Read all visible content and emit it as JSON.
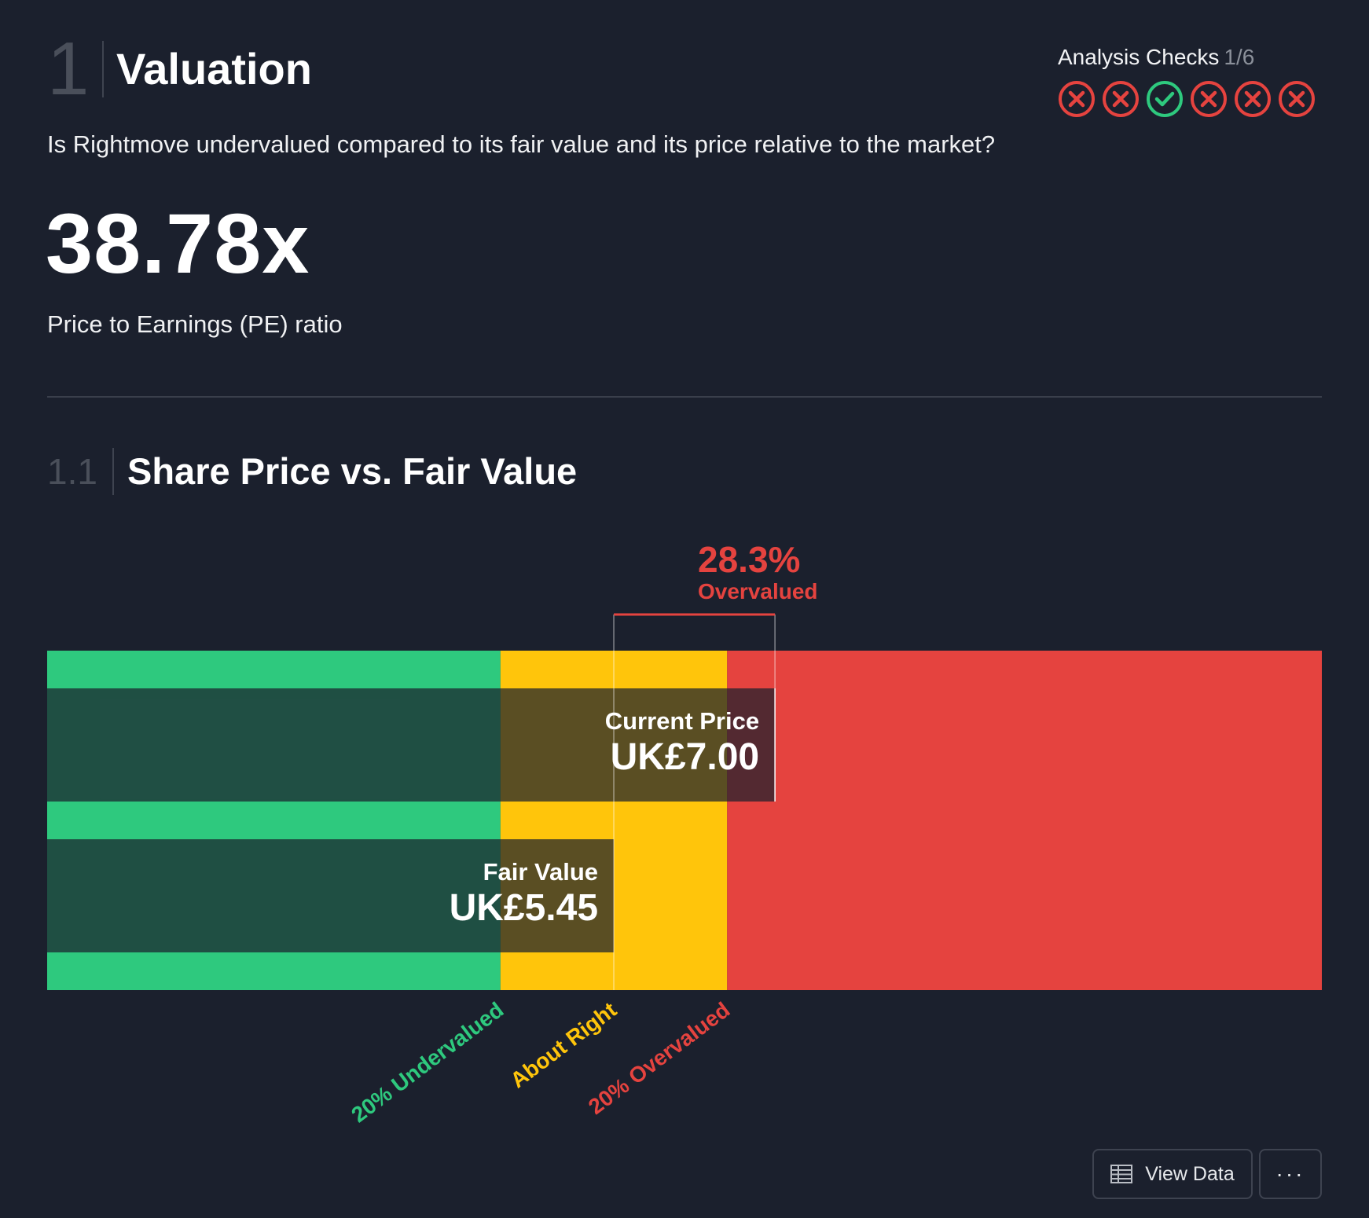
{
  "header": {
    "section_number": "1",
    "title": "Valuation",
    "question": "Is Rightmove undervalued compared to its fair value and its price relative to the market?",
    "metric_value": "38.78x",
    "metric_label": "Price to Earnings (PE) ratio"
  },
  "analysis_checks": {
    "label": "Analysis Checks",
    "score": "1/6",
    "items": [
      "fail",
      "fail",
      "pass",
      "fail",
      "fail",
      "fail"
    ],
    "icons": {
      "fail": "cross-circle-icon",
      "pass": "check-circle-icon"
    },
    "colors": {
      "fail": "#e5433f",
      "pass": "#2ec97e"
    }
  },
  "subsection": {
    "number": "1.1",
    "title": "Share Price vs. Fair Value"
  },
  "chart_data": {
    "type": "bar",
    "orientation": "horizontal",
    "categories": [
      "Current Price",
      "Fair Value"
    ],
    "values": [
      7.0,
      5.45
    ],
    "value_labels": [
      "UK£7.00",
      "UK£5.45"
    ],
    "currency": "UK£",
    "difference_percent": "28.3%",
    "difference_label": "Overvalued",
    "xlim": [
      0,
      12.26
    ],
    "zones": [
      {
        "label": "20% Undervalued",
        "from": 0,
        "to": 4.36,
        "color": "#2ec97e"
      },
      {
        "label": "About Right",
        "from": 4.36,
        "to": 6.54,
        "color": "#ffc50b"
      },
      {
        "label": "20% Overvalued",
        "from": 6.54,
        "to": 12.26,
        "color": "#e5433f"
      }
    ],
    "threshold_labels": [
      "20% Undervalued",
      "About Right",
      "20% Overvalued"
    ],
    "threshold_values": [
      4.36,
      5.45,
      6.54
    ]
  },
  "buttons": {
    "view_data": "View Data",
    "more": "···"
  }
}
